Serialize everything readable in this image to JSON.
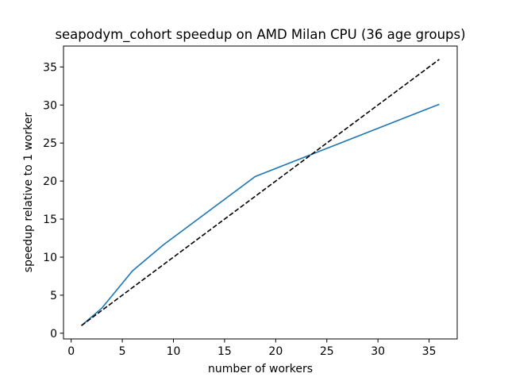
{
  "chart_data": {
    "type": "line",
    "title": "seapodym_cohort speedup on AMD Milan CPU (36 age groups)",
    "xlabel": "number of workers",
    "ylabel": "speedup relative to 1 worker",
    "xlim": [
      -0.75,
      37.75
    ],
    "ylim": [
      -0.75,
      37.75
    ],
    "xticks": [
      0,
      5,
      10,
      15,
      20,
      25,
      30,
      35
    ],
    "yticks": [
      0,
      5,
      10,
      15,
      20,
      25,
      30,
      35
    ],
    "grid": false,
    "legend": "none",
    "series": [
      {
        "color": "#1f77b4",
        "style": "solid",
        "x": [
          1,
          3,
          6,
          9,
          18,
          36
        ],
        "y": [
          1,
          3.3,
          8.2,
          11.6,
          20.6,
          30.1
        ]
      },
      {
        "color": "#000000",
        "style": "dashed",
        "x": [
          1,
          36
        ],
        "y": [
          1,
          36
        ]
      }
    ]
  }
}
